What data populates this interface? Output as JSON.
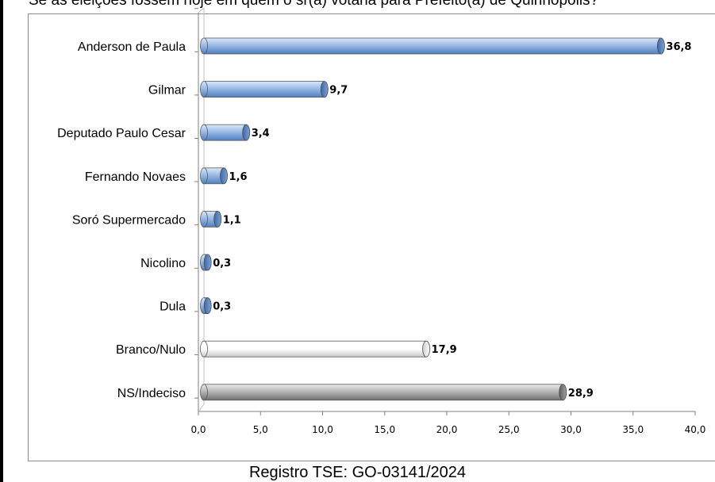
{
  "header": {
    "question": "Se as eleições fossem hoje em quem o sr(a) votaria para Prefeito(a) de Quirinópolis?"
  },
  "footer": {
    "registro": "Registro TSE: GO-03141/2024"
  },
  "colors": {
    "candidate_bar": "#7fa6da",
    "branco_bar": "#f2f2f2",
    "indeciso_bar": "#a6a6a6"
  },
  "chart_data": {
    "type": "bar",
    "orientation": "horizontal",
    "categories": [
      "Anderson de Paula",
      "Gilmar",
      "Deputado Paulo Cesar",
      "Fernando Novaes",
      "Soró Supermercado",
      "Nicolino",
      "Dula",
      "Branco/Nulo",
      "NS/Indeciso"
    ],
    "values": [
      36.8,
      9.7,
      3.4,
      1.6,
      1.1,
      0.3,
      0.3,
      17.9,
      28.9
    ],
    "value_labels": [
      "36,8",
      "9,7",
      "3,4",
      "1,6",
      "1,1",
      "0,3",
      "0,3",
      "17,9",
      "28,9"
    ],
    "bar_kinds": [
      "candidate",
      "candidate",
      "candidate",
      "candidate",
      "candidate",
      "candidate",
      "candidate",
      "branco",
      "indeciso"
    ],
    "xlim": [
      0,
      40
    ],
    "xticks": [
      0,
      5,
      10,
      15,
      20,
      25,
      30,
      35,
      40
    ],
    "xtick_labels": [
      "0,0",
      "5,0",
      "10,0",
      "15,0",
      "20,0",
      "25,0",
      "30,0",
      "35,0",
      "40,0"
    ],
    "grid": false,
    "legend": "none",
    "style": "3d-cylinder"
  }
}
